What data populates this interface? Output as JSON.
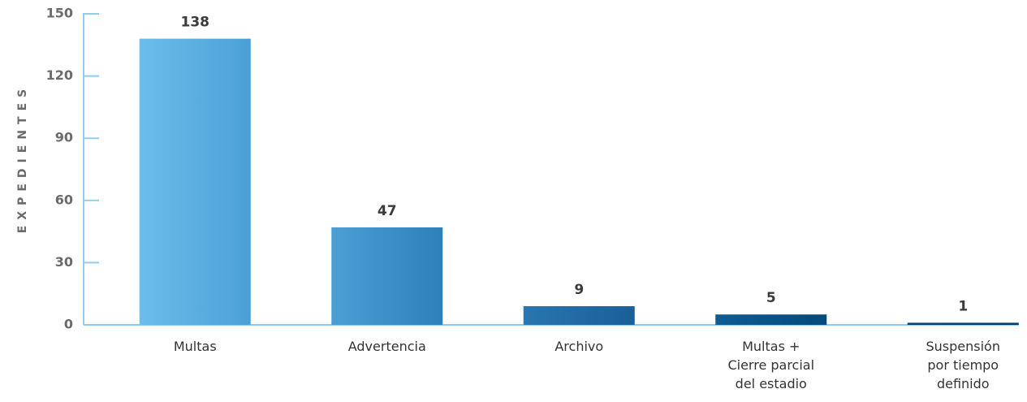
{
  "chart_data": {
    "type": "bar",
    "ylabel": "EXPEDIENTES",
    "categories": [
      [
        "Multas"
      ],
      [
        "Advertencia"
      ],
      [
        "Archivo"
      ],
      [
        "Multas +",
        "Cierre parcial",
        "del estadio"
      ],
      [
        "Suspensión",
        "por tiempo",
        "definido"
      ]
    ],
    "values": [
      138,
      47,
      9,
      5,
      1
    ],
    "colors": [
      [
        "#6cbdeb",
        "#4aa0d6"
      ],
      [
        "#4a9fd4",
        "#2e80bb"
      ],
      [
        "#2a76af",
        "#1a5f98"
      ],
      [
        "#0e5b93",
        "#054a7d"
      ],
      [
        "#034274",
        "#003a6b"
      ]
    ],
    "ylim": [
      0,
      150
    ],
    "yticks": [
      0,
      30,
      60,
      90,
      120,
      150
    ]
  }
}
